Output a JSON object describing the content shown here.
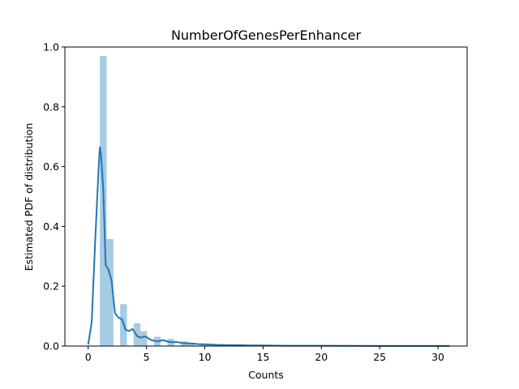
{
  "chart_data": {
    "type": "bar",
    "title": "NumberOfGenesPerEnhancer",
    "xlabel": "Counts",
    "ylabel": "Estimated PDF of distribution",
    "xlim": [
      -2.0,
      32.5
    ],
    "ylim": [
      0,
      1.0
    ],
    "xticks": [
      0,
      5,
      10,
      15,
      20,
      25,
      30
    ],
    "yticks": [
      0.0,
      0.2,
      0.4,
      0.6,
      0.8,
      1.0
    ],
    "grid": false,
    "legend": "none",
    "colors": {
      "bars": "#a6cbe3",
      "line": "#1f77b4",
      "axes": "#000000"
    },
    "histogram": {
      "bin_width": 0.58,
      "bins": [
        {
          "x": 1.0,
          "value": 0.97
        },
        {
          "x": 1.58,
          "value": 0.358
        },
        {
          "x": 2.74,
          "value": 0.14
        },
        {
          "x": 3.9,
          "value": 0.076
        },
        {
          "x": 4.48,
          "value": 0.05
        },
        {
          "x": 5.64,
          "value": 0.031
        },
        {
          "x": 6.8,
          "value": 0.024
        },
        {
          "x": 7.96,
          "value": 0.016
        },
        {
          "x": 8.54,
          "value": 0.009
        },
        {
          "x": 9.7,
          "value": 0.007
        },
        {
          "x": 10.28,
          "value": 0.005
        },
        {
          "x": 11.44,
          "value": 0.004
        },
        {
          "x": 12.6,
          "value": 0.003
        },
        {
          "x": 13.76,
          "value": 0.002
        },
        {
          "x": 14.92,
          "value": 0.002
        },
        {
          "x": 16.08,
          "value": 0.001
        },
        {
          "x": 17.24,
          "value": 0.001
        },
        {
          "x": 18.4,
          "value": 0.001
        },
        {
          "x": 19.56,
          "value": 0.001
        },
        {
          "x": 21.3,
          "value": 0.001
        },
        {
          "x": 23.04,
          "value": 0.001
        },
        {
          "x": 25.36,
          "value": 0.001
        },
        {
          "x": 27.68,
          "value": 0.001
        },
        {
          "x": 30.0,
          "value": 0.001
        }
      ]
    },
    "kde": {
      "x": [
        0.0,
        0.3,
        0.6,
        0.9,
        1.0,
        1.1,
        1.3,
        1.5,
        1.7,
        2.0,
        2.3,
        2.6,
        2.9,
        3.2,
        3.5,
        3.8,
        4.0,
        4.2,
        4.5,
        4.8,
        5.0,
        5.3,
        5.6,
        6.0,
        6.4,
        6.8,
        7.2,
        7.6,
        8.0,
        8.5,
        9.0,
        9.5,
        10.0,
        11.0,
        12.0,
        13.0,
        14.0,
        15.0,
        17.0,
        20.0,
        25.0,
        31.0
      ],
      "y": [
        0.005,
        0.08,
        0.35,
        0.6,
        0.665,
        0.64,
        0.52,
        0.27,
        0.26,
        0.22,
        0.11,
        0.095,
        0.09,
        0.055,
        0.05,
        0.057,
        0.045,
        0.033,
        0.028,
        0.032,
        0.03,
        0.022,
        0.018,
        0.016,
        0.02,
        0.015,
        0.013,
        0.014,
        0.01,
        0.009,
        0.008,
        0.006,
        0.006,
        0.004,
        0.003,
        0.003,
        0.002,
        0.002,
        0.001,
        0.001,
        0.0005,
        0.0005
      ]
    }
  }
}
